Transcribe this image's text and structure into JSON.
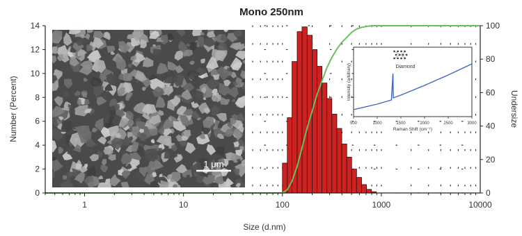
{
  "chart_data": {
    "type": "bar",
    "title": "Mono 250nm",
    "xlabel": "Size (d.nm)",
    "ylabel": "Number (Percent)",
    "y2label": "Undersize",
    "x_scale": "log",
    "xlim": [
      0.4,
      10000
    ],
    "ylim": [
      0,
      14
    ],
    "y2lim": [
      0,
      100
    ],
    "x_ticks": [
      {
        "value": 1,
        "label": "1"
      },
      {
        "value": 10,
        "label": "10"
      },
      {
        "value": 100,
        "label": "100"
      },
      {
        "value": 1000,
        "label": "1000"
      },
      {
        "value": 10000,
        "label": "10000"
      }
    ],
    "y_ticks": [
      "0",
      "2",
      "4",
      "6",
      "8",
      "10",
      "12",
      "14"
    ],
    "y2_ticks": [
      "0",
      "20",
      "40",
      "60",
      "80",
      "100"
    ],
    "grid": "dotted",
    "bar_color": "#cc2222",
    "curve_color": "#66c25a",
    "histogram": {
      "edges": [
        100,
        112,
        125,
        141,
        158,
        178,
        200,
        224,
        251,
        282,
        316,
        355,
        398,
        447,
        501,
        562,
        631,
        708,
        794,
        891,
        1000
      ],
      "values": [
        2.5,
        6.3,
        11.0,
        13.5,
        13.9,
        13.2,
        12.0,
        10.6,
        9.2,
        7.9,
        6.6,
        5.4,
        4.1,
        3.0,
        2.0,
        1.3,
        0.7,
        0.3,
        0.1,
        0.0
      ]
    },
    "cumulative_undersize": {
      "x": [
        0.4,
        90,
        100,
        112,
        125,
        141,
        158,
        178,
        200,
        224,
        251,
        282,
        316,
        355,
        398,
        447,
        501,
        562,
        631,
        708,
        794,
        891,
        1000,
        10000
      ],
      "y": [
        0,
        0,
        0,
        2,
        7,
        16,
        27,
        39,
        49,
        59,
        67,
        75,
        81,
        86,
        90,
        93,
        96,
        98,
        99,
        99.5,
        100,
        100,
        100,
        100
      ]
    },
    "sem_inset": {
      "description_icon": "sem-micrograph-image",
      "scale_bar_label": "1 μm"
    },
    "raman_inset": {
      "type": "line",
      "xlabel": "Raman Shift (cm⁻¹)",
      "ylabel": "Intensity (arbitrary)",
      "x_ticks": [
        "500",
        "1000",
        "1500",
        "2000",
        "2500",
        "3000"
      ],
      "xlim": [
        500,
        3000
      ],
      "annotation": "Diamond",
      "peak_x": 1332,
      "line_color": "#3b66c4",
      "x": [
        500,
        1000,
        1300,
        1332,
        1340,
        1500,
        2000,
        2500,
        3000
      ],
      "y": [
        0.1,
        0.18,
        0.24,
        0.62,
        0.27,
        0.31,
        0.45,
        0.6,
        0.76
      ],
      "icon": "diamond-lattice-icon"
    }
  }
}
